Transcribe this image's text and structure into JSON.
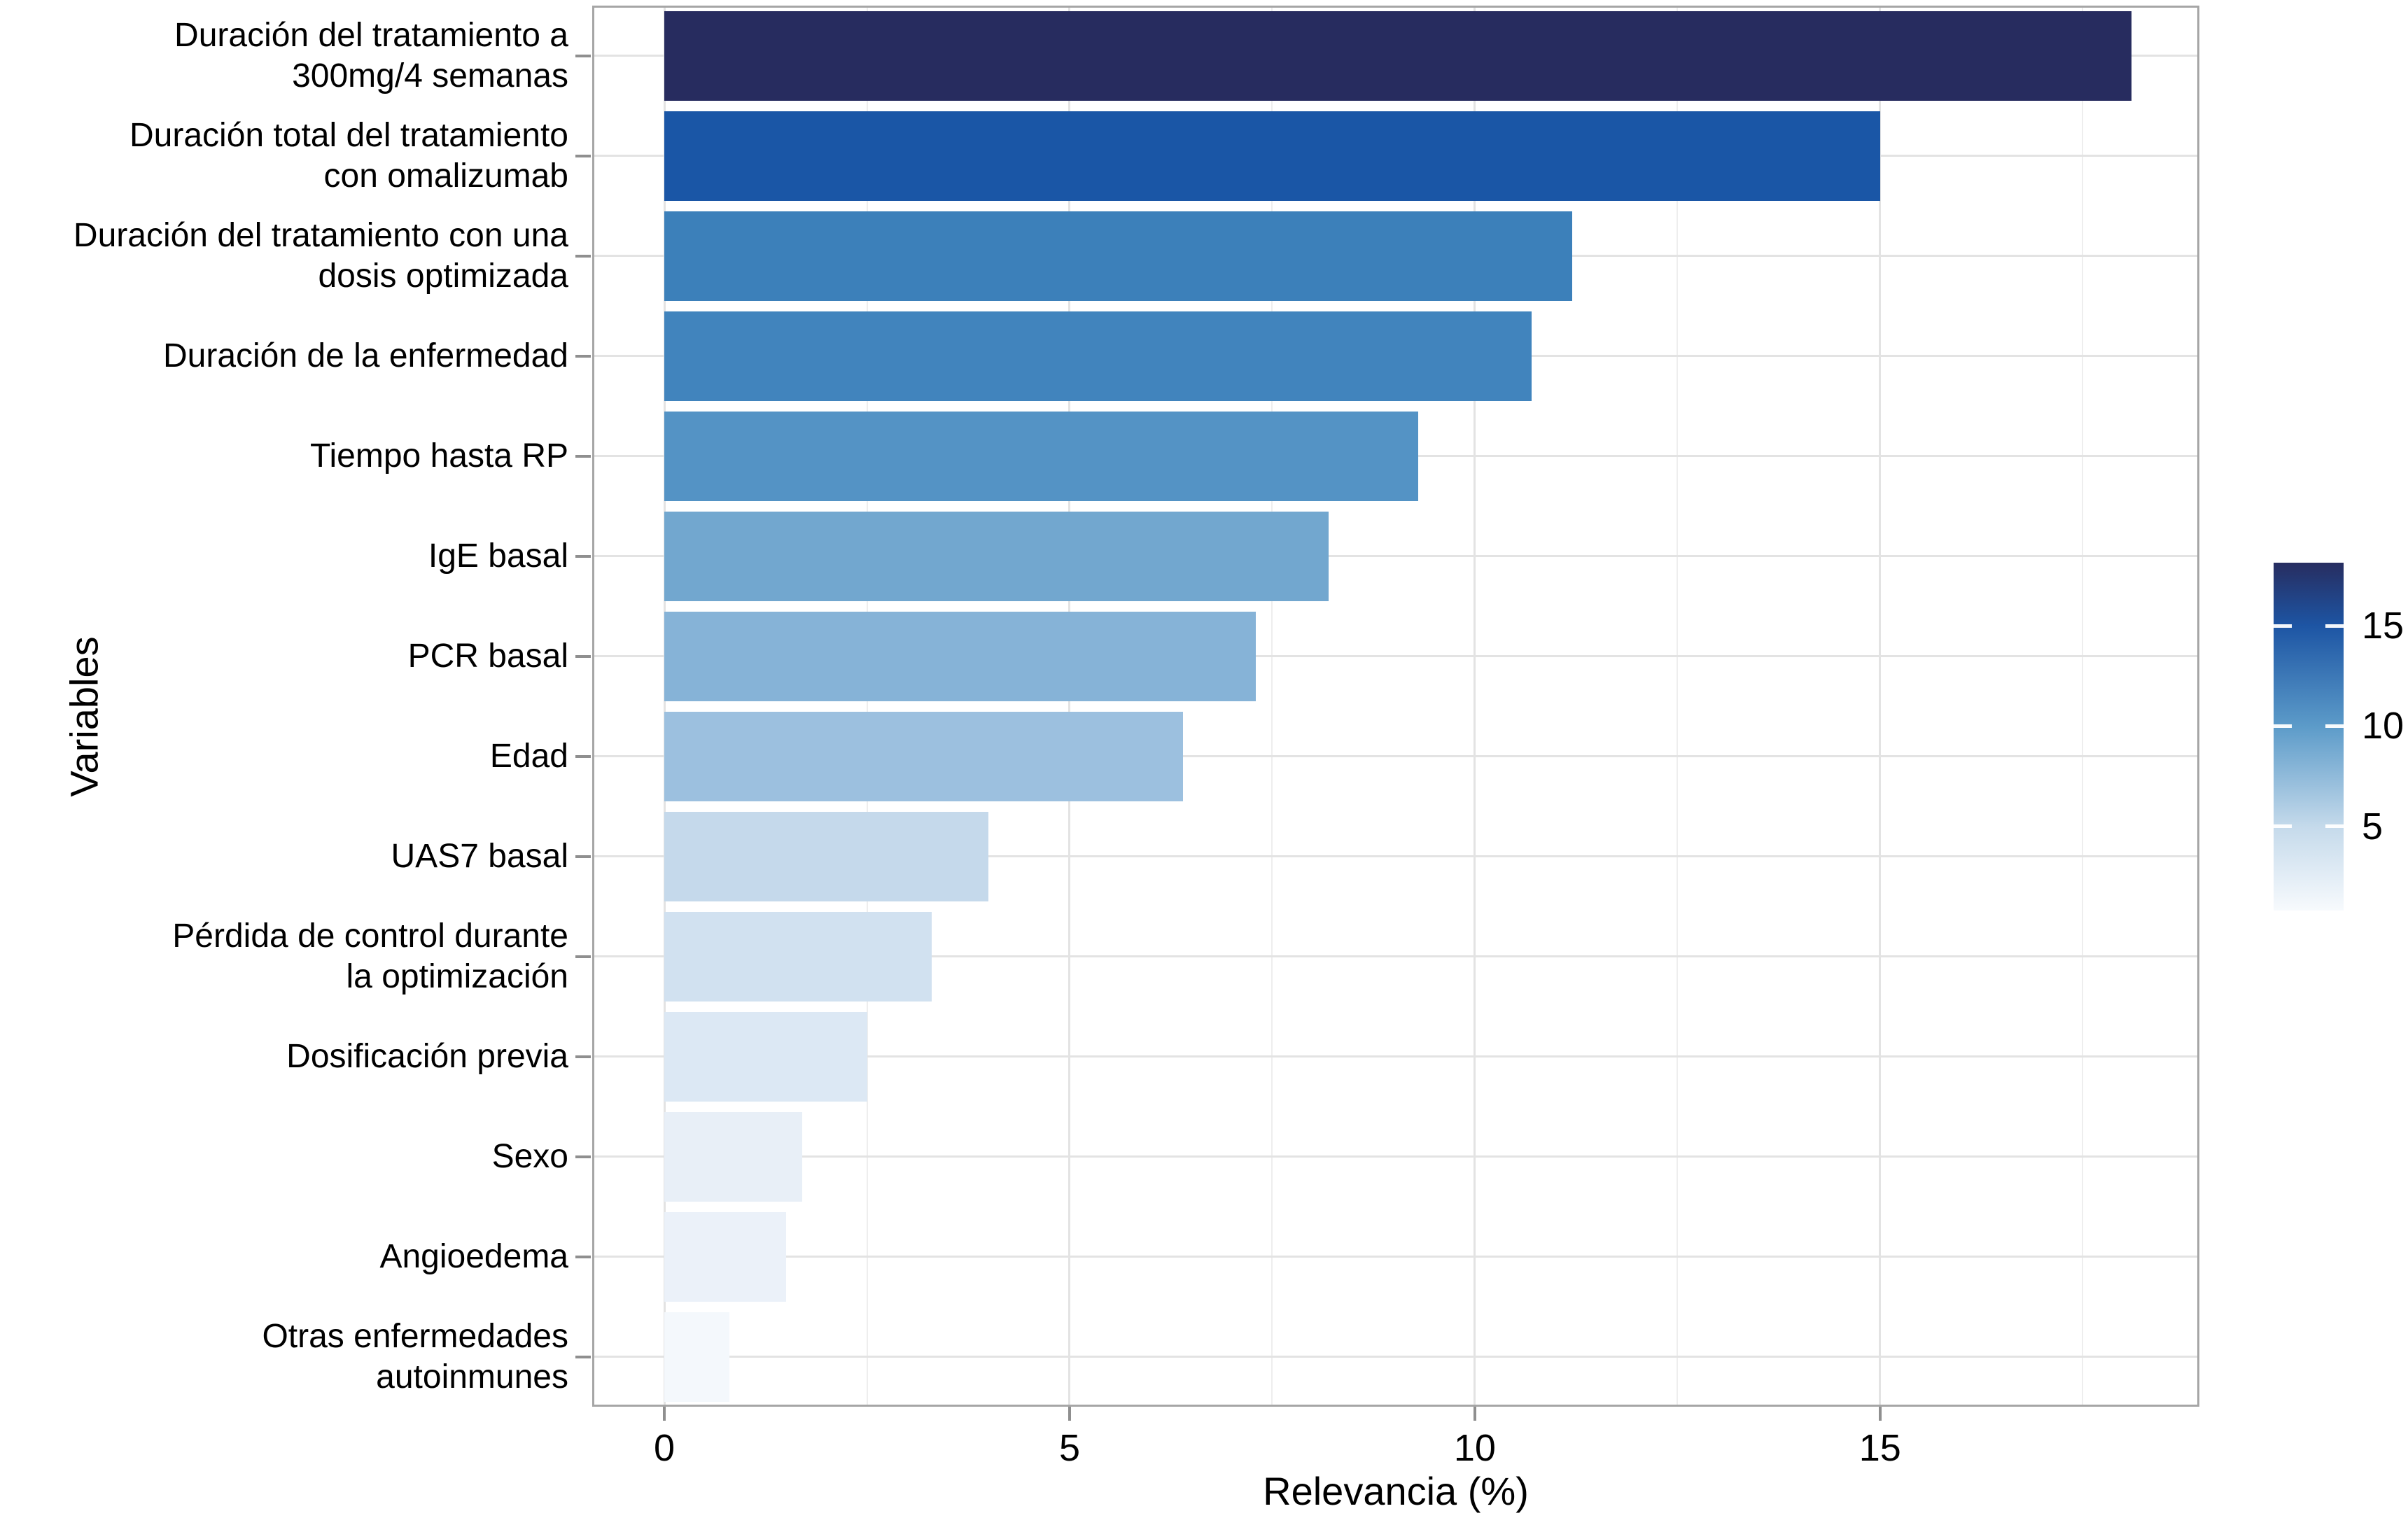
{
  "chart_data": {
    "type": "bar",
    "orientation": "horizontal",
    "title": "",
    "xlabel": "Relevancia (%)",
    "ylabel": "Variables",
    "categories": [
      [
        "Duración del tratamiento a",
        "300mg/4 semanas"
      ],
      [
        "Duración total del tratamiento",
        "con omalizumab"
      ],
      [
        "Duración del tratamiento con una",
        "dosis optimizada"
      ],
      [
        "Duración de la enfermedad"
      ],
      [
        "Tiempo hasta RP"
      ],
      [
        "IgE basal"
      ],
      [
        "PCR basal"
      ],
      [
        "Edad"
      ],
      [
        "UAS7 basal"
      ],
      [
        "Pérdida de control durante",
        "la optimización"
      ],
      [
        "Dosificación previa"
      ],
      [
        "Sexo"
      ],
      [
        "Angioedema"
      ],
      [
        "Otras enfermedades",
        "autoinmunes"
      ]
    ],
    "values": [
      18.1,
      15.0,
      11.2,
      10.7,
      9.3,
      8.2,
      7.3,
      6.4,
      4.0,
      3.3,
      2.5,
      1.7,
      1.5,
      0.8
    ],
    "bar_colors": [
      "#272c5f",
      "#1a56a6",
      "#3c80ba",
      "#4184bd",
      "#5493c5",
      "#72a7cf",
      "#86b3d7",
      "#9cc0df",
      "#c5d9eb",
      "#d1e1f0",
      "#dce8f4",
      "#e8eff7",
      "#ebf1f9",
      "#f4f8fc"
    ],
    "xlim": [
      -0.89,
      18.94
    ],
    "x_major_ticks": [
      0,
      5,
      10,
      15
    ],
    "x_major_tick_labels": [
      "0",
      "5",
      "10",
      "15"
    ],
    "x_minor_ticks": [
      2.5,
      7.5,
      12.5,
      17.5
    ],
    "grid": true,
    "legend": {
      "type": "colorbar",
      "position": "right",
      "range": [
        0.8,
        18.15
      ],
      "ticks": [
        15,
        10,
        5
      ],
      "tick_labels": [
        "15",
        "10",
        "5"
      ],
      "gradient_stops": [
        {
          "pos": 0.0,
          "color": "#272d60"
        },
        {
          "pos": 0.182,
          "color": "#1d55a4"
        },
        {
          "pos": 0.471,
          "color": "#5c9bc9"
        },
        {
          "pos": 0.76,
          "color": "#c5daeb"
        },
        {
          "pos": 1.0,
          "color": "#f7fafd"
        }
      ]
    }
  },
  "colors": {
    "background": "#ffffff",
    "panel_border": "#a6a6a6",
    "grid_major": "#e3e3e3",
    "grid_minor": "#eeeeee",
    "tick_mark": "#8f8f8f",
    "text": "#000000"
  }
}
